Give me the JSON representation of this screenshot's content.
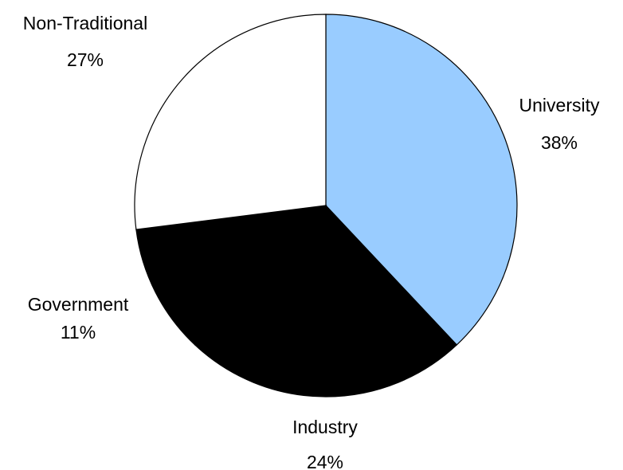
{
  "chart_data": {
    "type": "pie",
    "title": "",
    "legend": "none",
    "slices": [
      {
        "label": "University",
        "value": 38,
        "display": "38%",
        "color": "#99ccff"
      },
      {
        "label": "Industry",
        "value": 24,
        "display": "24%",
        "color": "#000000"
      },
      {
        "label": "Government",
        "value": 11,
        "display": "11%",
        "color": "#000000"
      },
      {
        "label": "Non-Traditional",
        "value": 27,
        "display": "27%",
        "color": "#ffffff"
      }
    ],
    "slice_outline_color": "#000000"
  }
}
